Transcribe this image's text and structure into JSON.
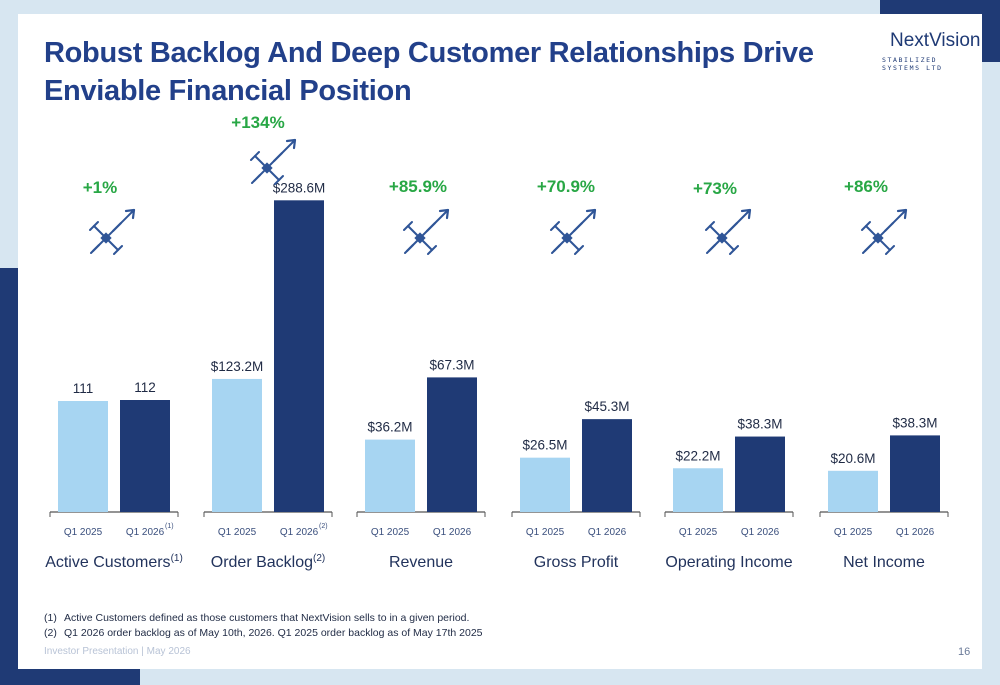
{
  "slide": {
    "title": "Robust Backlog And Deep Customer Relationships Drive Enviable Financial Position",
    "page_number": "16",
    "footer": "Investor Presentation  |  May 2026"
  },
  "logo": {
    "name": "NextVision",
    "subtitle": "STABILIZED SYSTEMS LTD"
  },
  "footnotes": [
    {
      "num": "(1)",
      "text": "Active Customers defined as those customers that NextVision sells to in a given period."
    },
    {
      "num": "(2)",
      "text": "Q1 2026 order backlog as of May 10th, 2026. Q1 2025 order backlog as of May 17th 2025"
    }
  ],
  "colors": {
    "prior": "#a7d5f2",
    "current": "#1f3a75",
    "growth": "#28a745",
    "title": "#22408a",
    "drone_icon": "#2f5597"
  },
  "chart_data": [
    {
      "type": "bar",
      "title": "Active Customers",
      "title_note": "(1)",
      "categories": [
        "Q1 2025",
        "Q1 2026"
      ],
      "tick_notes": [
        "",
        "(1)"
      ],
      "values": [
        111,
        112
      ],
      "value_labels": [
        "111",
        "112"
      ],
      "growth": "+1%",
      "icon": "drone-growth-icon"
    },
    {
      "type": "bar",
      "title": "Order Backlog",
      "title_note": "(2)",
      "categories": [
        "Q1 2025",
        "Q1 2026"
      ],
      "tick_notes": [
        "",
        "(2)"
      ],
      "values": [
        123.2,
        288.6
      ],
      "value_labels": [
        "$123.2M",
        "$288.6M"
      ],
      "growth": "+134%",
      "icon": "drone-growth-icon"
    },
    {
      "type": "bar",
      "title": "Revenue",
      "title_note": "",
      "categories": [
        "Q1 2025",
        "Q1 2026"
      ],
      "tick_notes": [
        "",
        ""
      ],
      "values": [
        36.2,
        67.3
      ],
      "value_labels": [
        "$36.2M",
        "$67.3M"
      ],
      "growth": "+85.9%",
      "icon": "drone-growth-icon"
    },
    {
      "type": "bar",
      "title": "Gross Profit",
      "title_note": "",
      "categories": [
        "Q1 2025",
        "Q1 2026"
      ],
      "tick_notes": [
        "",
        ""
      ],
      "values": [
        26.5,
        45.3
      ],
      "value_labels": [
        "$26.5M",
        "$45.3M"
      ],
      "growth": "+70.9%",
      "icon": "drone-growth-icon"
    },
    {
      "type": "bar",
      "title": "Operating Income",
      "title_note": "",
      "categories": [
        "Q1 2025",
        "Q1 2026"
      ],
      "tick_notes": [
        "",
        ""
      ],
      "values": [
        22.2,
        38.3
      ],
      "value_labels": [
        "$22.2M",
        "$38.3M"
      ],
      "growth": "+73%",
      "icon": "drone-growth-icon"
    },
    {
      "type": "bar",
      "title": "Net Income",
      "title_note": "",
      "categories": [
        "Q1 2025",
        "Q1 2026"
      ],
      "tick_notes": [
        "",
        ""
      ],
      "values": [
        20.6,
        38.3
      ],
      "value_labels": [
        "$20.6M",
        "$38.3M"
      ],
      "growth": "+86%",
      "icon": "drone-growth-icon"
    }
  ]
}
